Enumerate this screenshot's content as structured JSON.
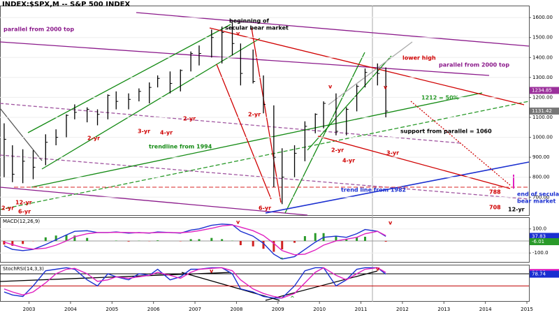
{
  "chart_data": [
    {
      "type": "ohlc",
      "title": "INDEX:$SPX,M -- S&P 500 INDEX",
      "color": "#000",
      "x": [
        2002.4,
        2002.6,
        2002.85,
        2003.1,
        2003.4,
        2003.65,
        2003.9,
        2004.1,
        2004.4,
        2004.65,
        2004.9,
        2005.1,
        2005.4,
        2005.65,
        2005.9,
        2006.1,
        2006.4,
        2006.65,
        2006.9,
        2007.1,
        2007.4,
        2007.65,
        2007.9,
        2008.1,
        2008.4,
        2008.65,
        2008.9,
        2009.1,
        2009.4,
        2009.65,
        2009.9,
        2010.1,
        2010.4,
        2010.65,
        2010.9,
        2011.1,
        2011.4,
        2011.6
      ],
      "high": [
        1070,
        960,
        940,
        935,
        1015,
        1040,
        1115,
        1165,
        1150,
        1140,
        1215,
        1230,
        1220,
        1245,
        1275,
        1310,
        1330,
        1340,
        1430,
        1460,
        1540,
        1555,
        1575,
        1470,
        1440,
        1310,
        1160,
        945,
        960,
        1080,
        1120,
        1180,
        1220,
        1150,
        1265,
        1345,
        1370,
        1350
      ],
      "low": [
        800,
        775,
        770,
        790,
        860,
        960,
        1000,
        1090,
        1075,
        1060,
        1090,
        1140,
        1140,
        1180,
        1170,
        1250,
        1220,
        1230,
        1330,
        1360,
        1400,
        1370,
        1410,
        1260,
        1270,
        1120,
        750,
        665,
        800,
        880,
        1020,
        1045,
        1010,
        1010,
        1130,
        1250,
        1260,
        1100
      ],
      "close": [
        990,
        815,
        880,
        850,
        975,
        1000,
        1110,
        1125,
        1140,
        1115,
        1210,
        1180,
        1190,
        1230,
        1250,
        1295,
        1270,
        1335,
        1420,
        1420,
        1500,
        1525,
        1470,
        1320,
        1280,
        1165,
        900,
        800,
        920,
        1055,
        1115,
        1170,
        1030,
        1140,
        1255,
        1325,
        1320,
        1131.42
      ],
      "xlim": [
        2002.3,
        2015.05
      ],
      "ylim": [
        610,
        1660
      ],
      "yticks": [
        {
          "value": 700,
          "label": "700.00"
        },
        {
          "value": 800,
          "label": "800.00"
        },
        {
          "value": 900,
          "label": "900.00"
        },
        {
          "value": 1000,
          "label": "1000.00"
        },
        {
          "value": 1100,
          "label": "1100.00"
        },
        {
          "value": 1200,
          "label": "1200.00"
        },
        {
          "value": 1300,
          "label": "1300.00"
        },
        {
          "value": 1400,
          "label": "1400.00"
        },
        {
          "value": 1500,
          "label": "1500.00"
        },
        {
          "value": 1600,
          "label": "1600.00"
        }
      ],
      "markers": [
        {
          "value": 1234.85,
          "color": "#9b309b"
        },
        {
          "value": 1131.42,
          "color": "#777777"
        }
      ],
      "annotations": [
        {
          "text": "beginning of",
          "color": "#000000"
        },
        {
          "text": "secular bear market",
          "color": "#000000"
        },
        {
          "text": "parallel from 2000 top",
          "color": "#8b1a8b"
        },
        {
          "text": "parallel from 2000 top",
          "color": "#8b1a8b"
        },
        {
          "text": "lower high",
          "color": "#d00000"
        },
        {
          "text": "1212 = 50%",
          "color": "#2a9a2a"
        },
        {
          "text": "support from parallel = 1060",
          "color": "#000000"
        },
        {
          "text": "trendline from 1994",
          "color": "#138a13"
        },
        {
          "text": "trend line from 1982",
          "color": "#1a2fd0"
        },
        {
          "text": "12-yr",
          "color": "#d00000"
        },
        {
          "text": "6-yr",
          "color": "#d00000"
        },
        {
          "text": "2-yr",
          "color": "#d00000"
        },
        {
          "text": "2-yr",
          "color": "#d00000"
        },
        {
          "text": "3-yr",
          "color": "#d00000"
        },
        {
          "text": "4-yr",
          "color": "#d00000"
        },
        {
          "text": "2-yr",
          "color": "#d00000"
        },
        {
          "text": "2-yr",
          "color": "#d00000"
        },
        {
          "text": "4-yr",
          "color": "#d00000"
        },
        {
          "text": "2-yr",
          "color": "#d00000"
        },
        {
          "text": "3-yr",
          "color": "#d00000"
        },
        {
          "text": "6-yr",
          "color": "#d00000"
        },
        {
          "text": "v",
          "color": "#d00000"
        },
        {
          "text": "v",
          "color": "#d00000"
        },
        {
          "text": "v",
          "color": "#d00000"
        },
        {
          "text": "788",
          "color": "#d00000"
        },
        {
          "text": "708",
          "color": "#d00000"
        },
        {
          "text": "end of secular",
          "color": "#1a2fd0"
        },
        {
          "text": "bear market",
          "color": "#1a2fd0"
        },
        {
          "text": "12-yr",
          "color": "#000000"
        }
      ]
    },
    {
      "type": "line",
      "title": "MACD(12,26,9)",
      "x": [
        2002.4,
        2002.6,
        2002.85,
        2003.1,
        2003.4,
        2003.65,
        2003.9,
        2004.1,
        2004.4,
        2004.65,
        2004.9,
        2005.1,
        2005.4,
        2005.65,
        2005.9,
        2006.1,
        2006.4,
        2006.65,
        2006.9,
        2007.1,
        2007.4,
        2007.65,
        2007.9,
        2008.1,
        2008.4,
        2008.65,
        2008.9,
        2009.1,
        2009.4,
        2009.65,
        2009.9,
        2010.1,
        2010.4,
        2010.65,
        2010.9,
        2011.1,
        2011.4,
        2011.6
      ],
      "series": [
        {
          "style": "bars",
          "color": "#2a9a2a",
          "negative_color": "#d02020",
          "values": [
            -30,
            -40,
            -25,
            -2,
            30,
            45,
            50,
            45,
            25,
            0,
            0,
            3,
            -5,
            2,
            -2,
            5,
            0,
            -3,
            15,
            15,
            25,
            15,
            2,
            -35,
            -45,
            -65,
            -90,
            -70,
            -15,
            40,
            65,
            65,
            40,
            15,
            30,
            35,
            0,
            -6.01
          ]
        },
        {
          "style": "line",
          "color": "#1a2fd0",
          "values": [
            -40,
            -70,
            -80,
            -70,
            -30,
            10,
            50,
            80,
            85,
            70,
            70,
            75,
            65,
            70,
            65,
            75,
            70,
            65,
            90,
            100,
            130,
            140,
            135,
            80,
            40,
            -20,
            -110,
            -150,
            -130,
            -70,
            -10,
            30,
            40,
            30,
            60,
            95,
            80,
            37.83
          ]
        },
        {
          "style": "line",
          "color": "#e020c0",
          "values": [
            -10,
            -30,
            -55,
            -68,
            -60,
            -35,
            0,
            35,
            60,
            70,
            70,
            72,
            70,
            68,
            67,
            70,
            70,
            68,
            75,
            85,
            105,
            125,
            133,
            115,
            85,
            45,
            -20,
            -80,
            -115,
            -110,
            -75,
            -35,
            0,
            15,
            30,
            60,
            80,
            43.84
          ]
        }
      ],
      "xlim": [
        2002.3,
        2015.05
      ],
      "ylim": [
        -174,
        197
      ],
      "yticks": [
        {
          "value": 100,
          "label": "100.0"
        },
        {
          "value": -100,
          "label": "-100.0"
        }
      ],
      "markers": [
        {
          "value": 37.83,
          "color": "#1a2fd0"
        },
        {
          "value": -6.01,
          "color": "#2a9a2a"
        }
      ],
      "annotations": [
        {
          "text": "v",
          "color": "#d00000"
        },
        {
          "text": "^",
          "color": "#2a9a2a"
        },
        {
          "text": "v",
          "color": "#d00000"
        }
      ]
    },
    {
      "type": "line",
      "title": "StochRSI(14,3,3)",
      "x": [
        2002.4,
        2002.6,
        2002.85,
        2003.1,
        2003.4,
        2003.65,
        2003.9,
        2004.1,
        2004.4,
        2004.65,
        2004.9,
        2005.1,
        2005.4,
        2005.65,
        2005.9,
        2006.1,
        2006.4,
        2006.65,
        2006.9,
        2007.1,
        2007.4,
        2007.65,
        2007.9,
        2008.1,
        2008.4,
        2008.65,
        2008.9,
        2009.1,
        2009.4,
        2009.65,
        2009.9,
        2010.1,
        2010.4,
        2010.65,
        2010.9,
        2011.1,
        2011.4,
        2011.6
      ],
      "series": [
        {
          "style": "line",
          "color": "#1a2fd0",
          "values": [
            20,
            10,
            5,
            40,
            90,
            95,
            100,
            95,
            60,
            40,
            80,
            70,
            60,
            80,
            75,
            95,
            60,
            70,
            95,
            95,
            100,
            100,
            80,
            30,
            20,
            5,
            0,
            0,
            40,
            90,
            100,
            100,
            40,
            60,
            95,
            100,
            100,
            78.74
          ]
        },
        {
          "style": "line",
          "color": "#e020c0",
          "values": [
            30,
            20,
            10,
            20,
            50,
            80,
            95,
            98,
            80,
            55,
            60,
            70,
            65,
            70,
            75,
            85,
            75,
            65,
            85,
            95,
            98,
            100,
            90,
            60,
            30,
            15,
            5,
            0,
            15,
            50,
            85,
            100,
            75,
            60,
            80,
            95,
            100,
            84.33
          ]
        }
      ],
      "levels": [
        {
          "value": 80,
          "color": "#000000"
        },
        {
          "value": 40,
          "color": "#c00000"
        }
      ],
      "xlim": [
        2002.3,
        2015.05
      ],
      "ylim": [
        -10,
        110
      ],
      "xticks": [
        2003,
        2004,
        2005,
        2006,
        2007,
        2008,
        2009,
        2010,
        2011,
        2012,
        2013,
        2014,
        2015
      ],
      "markers": [
        {
          "value": 84.33,
          "color": "#e020c0"
        },
        {
          "value": 78.74,
          "color": "#1a2fd0"
        }
      ],
      "annotations": [
        {
          "text": "v",
          "color": "#d00000"
        },
        {
          "text": "v",
          "color": "#d00000"
        },
        {
          "text": "^",
          "color": "#2a9a2a"
        }
      ]
    }
  ]
}
